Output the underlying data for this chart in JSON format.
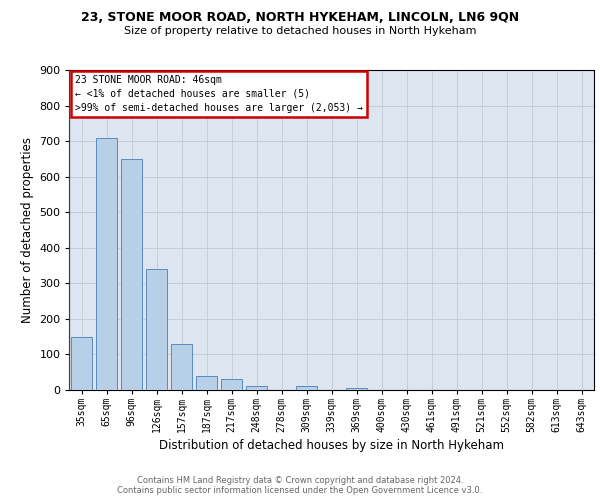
{
  "title1": "23, STONE MOOR ROAD, NORTH HYKEHAM, LINCOLN, LN6 9QN",
  "title2": "Size of property relative to detached houses in North Hykeham",
  "xlabel": "Distribution of detached houses by size in North Hykeham",
  "ylabel": "Number of detached properties",
  "categories": [
    "35sqm",
    "65sqm",
    "96sqm",
    "126sqm",
    "157sqm",
    "187sqm",
    "217sqm",
    "248sqm",
    "278sqm",
    "309sqm",
    "339sqm",
    "369sqm",
    "400sqm",
    "430sqm",
    "461sqm",
    "491sqm",
    "521sqm",
    "552sqm",
    "582sqm",
    "613sqm",
    "643sqm"
  ],
  "values": [
    150,
    710,
    650,
    340,
    130,
    40,
    30,
    10,
    0,
    10,
    0,
    5,
    0,
    0,
    0,
    0,
    0,
    0,
    0,
    0,
    0
  ],
  "bar_color": "#b8cfe8",
  "bar_edge_color": "#5a8abf",
  "ylim_max": 900,
  "yticks": [
    0,
    100,
    200,
    300,
    400,
    500,
    600,
    700,
    800,
    900
  ],
  "annotation_line1": "23 STONE MOOR ROAD: 46sqm",
  "annotation_line2": "← <1% of detached houses are smaller (5)",
  "annotation_line3": ">99% of semi-detached houses are larger (2,053) →",
  "red_line_color": "#cc0000",
  "annotation_border_color": "#cc0000",
  "plot_bg_color": "#dde5f0",
  "fig_bg_color": "#ffffff",
  "grid_color": "#c0cad8",
  "footer1": "Contains HM Land Registry data © Crown copyright and database right 2024.",
  "footer2": "Contains public sector information licensed under the Open Government Licence v3.0."
}
